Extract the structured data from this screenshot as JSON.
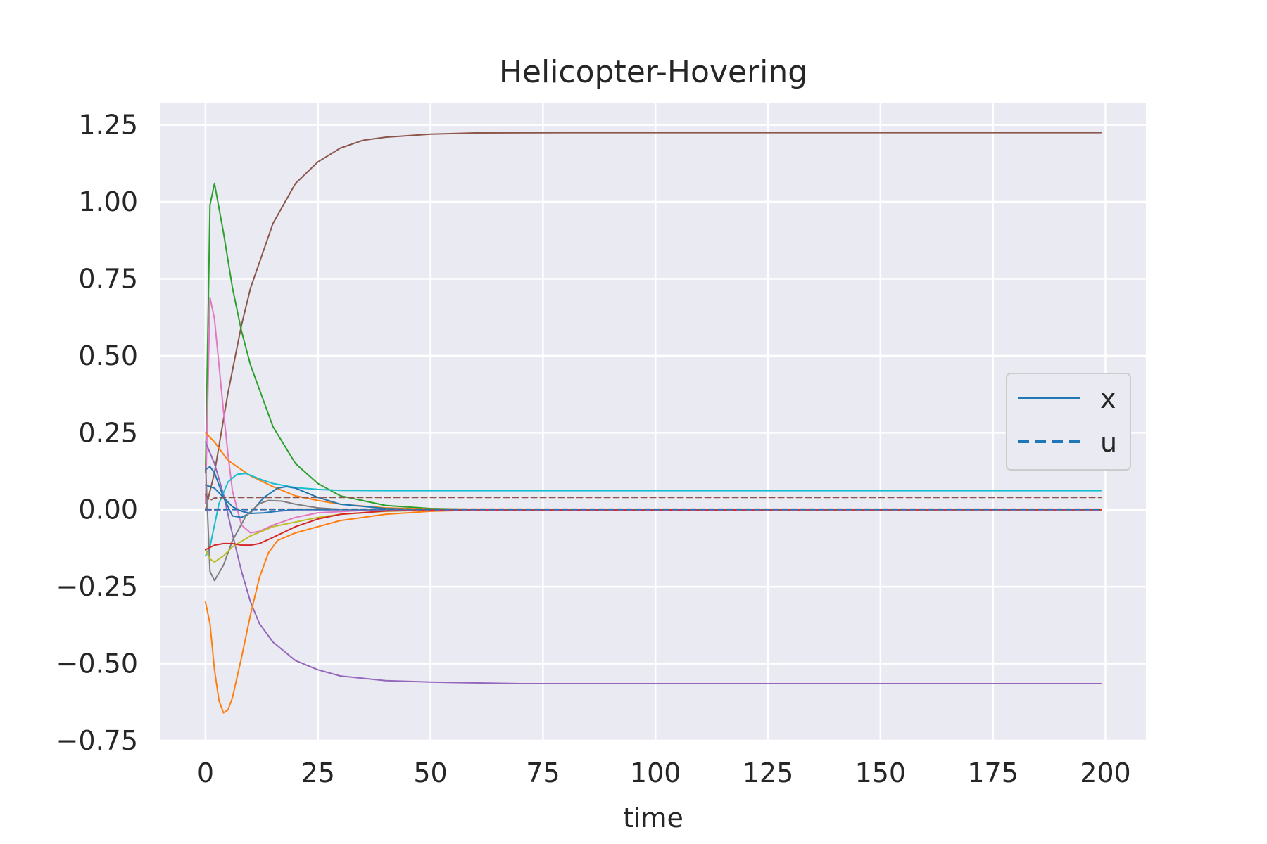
{
  "chart_data": {
    "type": "line",
    "title": "Helicopter-Hovering",
    "xlabel": "time",
    "ylabel": "",
    "xlim": [
      -10,
      209
    ],
    "ylim": [
      -0.75,
      1.32
    ],
    "xticks": [
      0,
      25,
      50,
      75,
      100,
      125,
      150,
      175,
      200
    ],
    "yticks": [
      1.25,
      1.0,
      0.75,
      0.5,
      0.25,
      0.0,
      -0.25,
      -0.5,
      -0.75
    ],
    "ytick_labels": [
      "1.25",
      "1.00",
      "0.75",
      "0.50",
      "0.25",
      "0.00",
      "−0.25",
      "−0.50",
      "−0.75"
    ],
    "xtick_labels": [
      "0",
      "25",
      "50",
      "75",
      "100",
      "125",
      "150",
      "175",
      "200"
    ],
    "grid": true,
    "background": "#eaeaf2",
    "legend": {
      "placement": "center-right",
      "entries": [
        {
          "label": "x",
          "style": "solid",
          "color": "#1f77b4"
        },
        {
          "label": "u",
          "style": "dashed",
          "color": "#1f77b4"
        }
      ]
    },
    "series": [
      {
        "kind": "x",
        "color": "#8c564b",
        "style": "solid",
        "points": [
          [
            0,
            0
          ],
          [
            2,
            0.12
          ],
          [
            5,
            0.38
          ],
          [
            8,
            0.6
          ],
          [
            10,
            0.72
          ],
          [
            15,
            0.93
          ],
          [
            20,
            1.06
          ],
          [
            25,
            1.13
          ],
          [
            30,
            1.175
          ],
          [
            35,
            1.2
          ],
          [
            40,
            1.21
          ],
          [
            50,
            1.22
          ],
          [
            60,
            1.224
          ],
          [
            80,
            1.225
          ],
          [
            199,
            1.225
          ]
        ]
      },
      {
        "kind": "x",
        "color": "#2ca02c",
        "style": "solid",
        "points": [
          [
            0,
            0.12
          ],
          [
            1,
            0.99
          ],
          [
            2,
            1.06
          ],
          [
            4,
            0.9
          ],
          [
            6,
            0.72
          ],
          [
            8,
            0.58
          ],
          [
            10,
            0.47
          ],
          [
            15,
            0.27
          ],
          [
            20,
            0.15
          ],
          [
            25,
            0.085
          ],
          [
            30,
            0.045
          ],
          [
            40,
            0.014
          ],
          [
            50,
            0.004
          ],
          [
            60,
            0.001
          ],
          [
            199,
            0
          ]
        ]
      },
      {
        "kind": "x",
        "color": "#e377c2",
        "style": "solid",
        "points": [
          [
            0,
            0.02
          ],
          [
            1,
            0.69
          ],
          [
            2,
            0.62
          ],
          [
            3,
            0.47
          ],
          [
            4,
            0.32
          ],
          [
            5,
            0.18
          ],
          [
            6,
            0.06
          ],
          [
            8,
            -0.05
          ],
          [
            10,
            -0.075
          ],
          [
            12,
            -0.07
          ],
          [
            15,
            -0.05
          ],
          [
            20,
            -0.025
          ],
          [
            25,
            -0.01
          ],
          [
            35,
            -0.002
          ],
          [
            50,
            0
          ],
          [
            199,
            0
          ]
        ]
      },
      {
        "kind": "x",
        "color": "#9467bd",
        "style": "solid",
        "points": [
          [
            0,
            0.22
          ],
          [
            2,
            0.15
          ],
          [
            4,
            0.05
          ],
          [
            6,
            -0.08
          ],
          [
            8,
            -0.2
          ],
          [
            10,
            -0.3
          ],
          [
            12,
            -0.37
          ],
          [
            15,
            -0.43
          ],
          [
            20,
            -0.49
          ],
          [
            25,
            -0.52
          ],
          [
            30,
            -0.54
          ],
          [
            40,
            -0.555
          ],
          [
            50,
            -0.56
          ],
          [
            70,
            -0.565
          ],
          [
            199,
            -0.565
          ]
        ]
      },
      {
        "kind": "x",
        "color": "#ff7f0e",
        "style": "solid",
        "points": [
          [
            0,
            -0.3
          ],
          [
            1,
            -0.37
          ],
          [
            2,
            -0.52
          ],
          [
            3,
            -0.62
          ],
          [
            4,
            -0.66
          ],
          [
            5,
            -0.65
          ],
          [
            6,
            -0.61
          ],
          [
            8,
            -0.48
          ],
          [
            10,
            -0.34
          ],
          [
            12,
            -0.22
          ],
          [
            14,
            -0.14
          ],
          [
            16,
            -0.1
          ],
          [
            20,
            -0.075
          ],
          [
            25,
            -0.055
          ],
          [
            30,
            -0.035
          ],
          [
            40,
            -0.015
          ],
          [
            50,
            -0.005
          ],
          [
            60,
            -0.001
          ],
          [
            199,
            0
          ]
        ]
      },
      {
        "kind": "x",
        "color": "#ff7f0e",
        "style": "solid",
        "points": [
          [
            0,
            0.25
          ],
          [
            2,
            0.22
          ],
          [
            5,
            0.16
          ],
          [
            8,
            0.13
          ],
          [
            10,
            0.11
          ],
          [
            15,
            0.075
          ],
          [
            20,
            0.045
          ],
          [
            25,
            0.03
          ],
          [
            30,
            0.018
          ],
          [
            40,
            0.006
          ],
          [
            50,
            0.002
          ],
          [
            199,
            0
          ]
        ]
      },
      {
        "kind": "x",
        "color": "#17becf",
        "style": "solid",
        "points": [
          [
            0,
            -0.15
          ],
          [
            1,
            -0.12
          ],
          [
            3,
            0.02
          ],
          [
            5,
            0.09
          ],
          [
            7,
            0.115
          ],
          [
            9,
            0.118
          ],
          [
            12,
            0.1
          ],
          [
            15,
            0.085
          ],
          [
            20,
            0.072
          ],
          [
            25,
            0.066
          ],
          [
            30,
            0.063
          ],
          [
            40,
            0.062
          ],
          [
            60,
            0.062
          ],
          [
            199,
            0.062
          ]
        ]
      },
      {
        "kind": "x",
        "color": "#1f77b4",
        "style": "solid",
        "points": [
          [
            0,
            0.13
          ],
          [
            1,
            0.14
          ],
          [
            2,
            0.12
          ],
          [
            4,
            0.04
          ],
          [
            6,
            -0.02
          ],
          [
            8,
            -0.025
          ],
          [
            10,
            -0.01
          ],
          [
            13,
            0.04
          ],
          [
            16,
            0.07
          ],
          [
            18,
            0.075
          ],
          [
            20,
            0.07
          ],
          [
            25,
            0.04
          ],
          [
            30,
            0.018
          ],
          [
            40,
            0.004
          ],
          [
            50,
            0
          ],
          [
            199,
            0
          ]
        ]
      },
      {
        "kind": "x",
        "color": "#1f77b4",
        "style": "solid",
        "points": [
          [
            0,
            0.08
          ],
          [
            2,
            0.07
          ],
          [
            4,
            0.04
          ],
          [
            6,
            0.01
          ],
          [
            8,
            -0.005
          ],
          [
            10,
            -0.012
          ],
          [
            13,
            -0.01
          ],
          [
            16,
            -0.005
          ],
          [
            20,
            0
          ],
          [
            199,
            0
          ]
        ]
      },
      {
        "kind": "x",
        "color": "#7f7f7f",
        "style": "solid",
        "points": [
          [
            0,
            0.15
          ],
          [
            1,
            -0.2
          ],
          [
            2,
            -0.23
          ],
          [
            4,
            -0.18
          ],
          [
            6,
            -0.1
          ],
          [
            9,
            -0.02
          ],
          [
            12,
            0.02
          ],
          [
            14,
            0.03
          ],
          [
            17,
            0.028
          ],
          [
            20,
            0.018
          ],
          [
            25,
            0.006
          ],
          [
            30,
            0.001
          ],
          [
            199,
            0
          ]
        ]
      },
      {
        "kind": "x",
        "color": "#bcbd22",
        "style": "solid",
        "points": [
          [
            0,
            -0.13
          ],
          [
            1,
            -0.16
          ],
          [
            2,
            -0.17
          ],
          [
            4,
            -0.15
          ],
          [
            6,
            -0.12
          ],
          [
            10,
            -0.085
          ],
          [
            15,
            -0.055
          ],
          [
            20,
            -0.04
          ],
          [
            25,
            -0.025
          ],
          [
            30,
            -0.015
          ],
          [
            40,
            -0.005
          ],
          [
            50,
            -0.001
          ],
          [
            199,
            0
          ]
        ]
      },
      {
        "kind": "x",
        "color": "#d62728",
        "style": "solid",
        "points": [
          [
            0,
            -0.13
          ],
          [
            2,
            -0.115
          ],
          [
            4,
            -0.11
          ],
          [
            6,
            -0.11
          ],
          [
            8,
            -0.115
          ],
          [
            10,
            -0.115
          ],
          [
            12,
            -0.11
          ],
          [
            15,
            -0.09
          ],
          [
            20,
            -0.055
          ],
          [
            25,
            -0.03
          ],
          [
            30,
            -0.015
          ],
          [
            40,
            -0.004
          ],
          [
            50,
            -0.001
          ],
          [
            199,
            0
          ]
        ]
      },
      {
        "kind": "u",
        "color": "#8c564b",
        "style": "dashed",
        "points": [
          [
            0,
            0.05
          ],
          [
            1,
            0.03
          ],
          [
            2,
            0.038
          ],
          [
            5,
            0.04
          ],
          [
            199,
            0.04
          ]
        ]
      },
      {
        "kind": "u",
        "color": "#d62728",
        "style": "dashed",
        "points": [
          [
            0,
            0.002
          ],
          [
            199,
            0.002
          ]
        ]
      },
      {
        "kind": "u",
        "color": "#9467bd",
        "style": "dashed",
        "points": [
          [
            0,
            -0.003
          ],
          [
            5,
            0
          ],
          [
            199,
            0
          ]
        ]
      },
      {
        "kind": "u",
        "color": "#1f77b4",
        "style": "dashed",
        "points": [
          [
            0,
            0.001
          ],
          [
            199,
            0.001
          ]
        ]
      }
    ]
  }
}
